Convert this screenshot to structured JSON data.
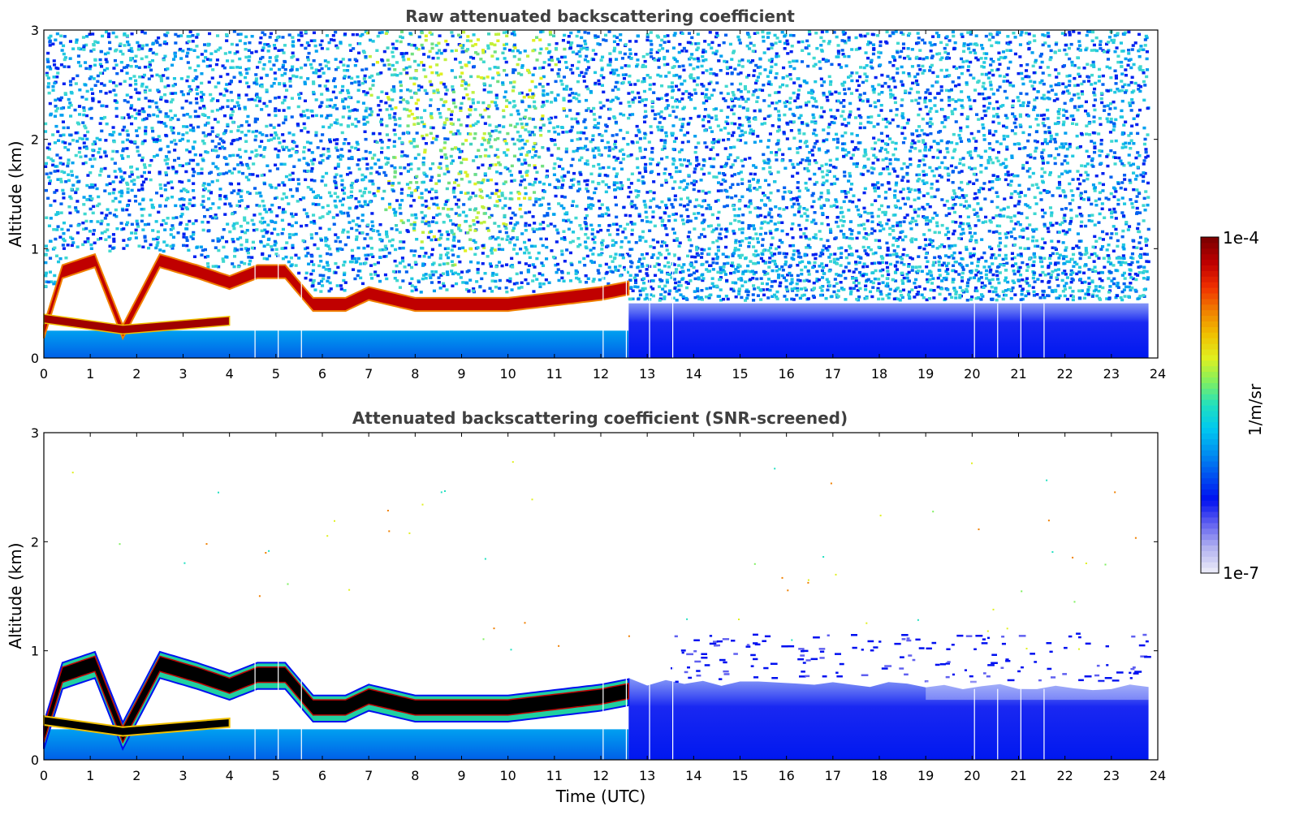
{
  "chart_data": [
    {
      "type": "heatmap",
      "title": "Raw attenuated backscattering coefficient",
      "xlabel": "",
      "ylabel": "Altitude (km)",
      "xlim": [
        0,
        24
      ],
      "ylim": [
        0,
        3
      ],
      "xticks": [
        "0",
        "1",
        "2",
        "3",
        "4",
        "5",
        "6",
        "7",
        "8",
        "9",
        "10",
        "11",
        "12",
        "13",
        "14",
        "15",
        "16",
        "17",
        "18",
        "19",
        "20",
        "21",
        "22",
        "23",
        "24"
      ],
      "yticks": [
        "0",
        "1",
        "2",
        "3"
      ],
      "data_end_time": 23.8,
      "cloud_layer_top_km": [
        {
          "x": 0.0,
          "y": 0.3
        },
        {
          "x": 0.4,
          "y": 0.85
        },
        {
          "x": 1.1,
          "y": 0.95
        },
        {
          "x": 1.7,
          "y": 0.3
        },
        {
          "x": 2.5,
          "y": 0.95
        },
        {
          "x": 3.3,
          "y": 0.85
        },
        {
          "x": 4.0,
          "y": 0.75
        },
        {
          "x": 4.6,
          "y": 0.85
        },
        {
          "x": 5.2,
          "y": 0.85
        },
        {
          "x": 5.8,
          "y": 0.55
        },
        {
          "x": 6.5,
          "y": 0.55
        },
        {
          "x": 7.0,
          "y": 0.65
        },
        {
          "x": 8.0,
          "y": 0.55
        },
        {
          "x": 9.0,
          "y": 0.55
        },
        {
          "x": 10.0,
          "y": 0.55
        },
        {
          "x": 11.0,
          "y": 0.6
        },
        {
          "x": 12.0,
          "y": 0.65
        },
        {
          "x": 12.6,
          "y": 0.7
        }
      ],
      "gaps_utc": [
        4.55,
        5.05,
        5.55,
        12.05,
        12.55,
        13.05,
        13.55,
        20.05,
        20.55,
        21.05,
        21.55
      ]
    },
    {
      "type": "heatmap",
      "title": "Attenuated backscattering coefficient (SNR-screened)",
      "xlabel": "Time (UTC)",
      "ylabel": "Altitude (km)",
      "xlim": [
        0,
        24
      ],
      "ylim": [
        0,
        3
      ],
      "xticks": [
        "0",
        "1",
        "2",
        "3",
        "4",
        "5",
        "6",
        "7",
        "8",
        "9",
        "10",
        "11",
        "12",
        "13",
        "14",
        "15",
        "16",
        "17",
        "18",
        "19",
        "20",
        "21",
        "22",
        "23",
        "24"
      ],
      "yticks": [
        "0",
        "1",
        "2",
        "3"
      ],
      "data_end_time": 23.8,
      "gaps_utc": [
        4.55,
        5.05,
        5.55,
        12.05,
        12.55,
        13.05,
        13.55,
        20.05,
        20.55,
        21.05,
        21.55
      ]
    }
  ],
  "colorbar": {
    "label": "1/m/sr",
    "max_label": "1e-4",
    "min_label": "1e-7",
    "colormap": [
      "#e8e8f8",
      "#b0b0f0",
      "#6060f0",
      "#0010f0",
      "#0050f0",
      "#0090f0",
      "#00c8f0",
      "#20e0c0",
      "#80f060",
      "#e0f020",
      "#f0c000",
      "#f08000",
      "#f03000",
      "#c00000",
      "#800000"
    ]
  }
}
